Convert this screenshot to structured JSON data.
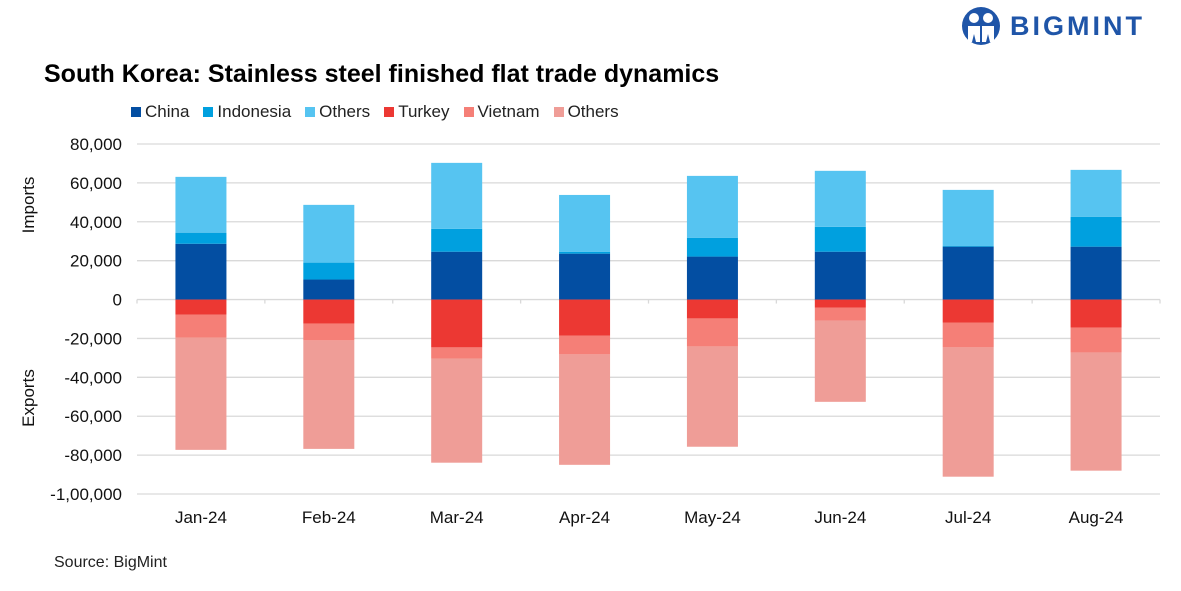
{
  "logo": {
    "text": "BIGMINT"
  },
  "source": "Source: BigMint",
  "chart_data": {
    "type": "bar",
    "stacked": true,
    "title": "South Korea: Stainless steel finished flat trade dynamics",
    "categories": [
      "Jan-24",
      "Feb-24",
      "Mar-24",
      "Apr-24",
      "May-24",
      "Jun-24",
      "Jul-24",
      "Aug-24"
    ],
    "ylabel_top": "Imports",
    "ylabel_bottom": "Exports",
    "ylim": [
      -100000,
      80000
    ],
    "yticks": [
      80000,
      60000,
      40000,
      20000,
      0,
      -20000,
      -40000,
      -60000,
      -80000,
      -100000
    ],
    "ytick_labels": [
      "80,000",
      "60,000",
      "40,000",
      "20,000",
      "0",
      "-20,000",
      "-40,000",
      "-60,000",
      "-80,000",
      "-1,00,000"
    ],
    "grid": true,
    "legend_position": "top",
    "series": [
      {
        "name": "China",
        "group": "imports",
        "color": "#034ea2",
        "values": [
          28700,
          10300,
          24600,
          23600,
          22100,
          24600,
          27200,
          27200
        ]
      },
      {
        "name": "Indonesia",
        "group": "imports",
        "color": "#00a0df",
        "values": [
          5700,
          8700,
          11800,
          1000,
          9700,
          12800,
          500,
          15400
        ]
      },
      {
        "name": "Others",
        "group": "imports",
        "color": "#56c4f1",
        "values": [
          28700,
          29700,
          33900,
          29200,
          31800,
          28800,
          28700,
          24100
        ]
      },
      {
        "name": "Turkey",
        "group": "exports",
        "color": "#ec3833",
        "values": [
          -7700,
          -12300,
          -24600,
          -18500,
          -9700,
          -4100,
          -11800,
          -14400
        ]
      },
      {
        "name": "Vietnam",
        "group": "exports",
        "color": "#f57f77",
        "values": [
          -11800,
          -8700,
          -5700,
          -9700,
          -14400,
          -6700,
          -12800,
          -12800
        ]
      },
      {
        "name": "Others",
        "group": "exports",
        "color": "#ef9d97",
        "values": [
          -57800,
          -55800,
          -53600,
          -56800,
          -51600,
          -41800,
          -66500,
          -60800
        ]
      }
    ]
  }
}
